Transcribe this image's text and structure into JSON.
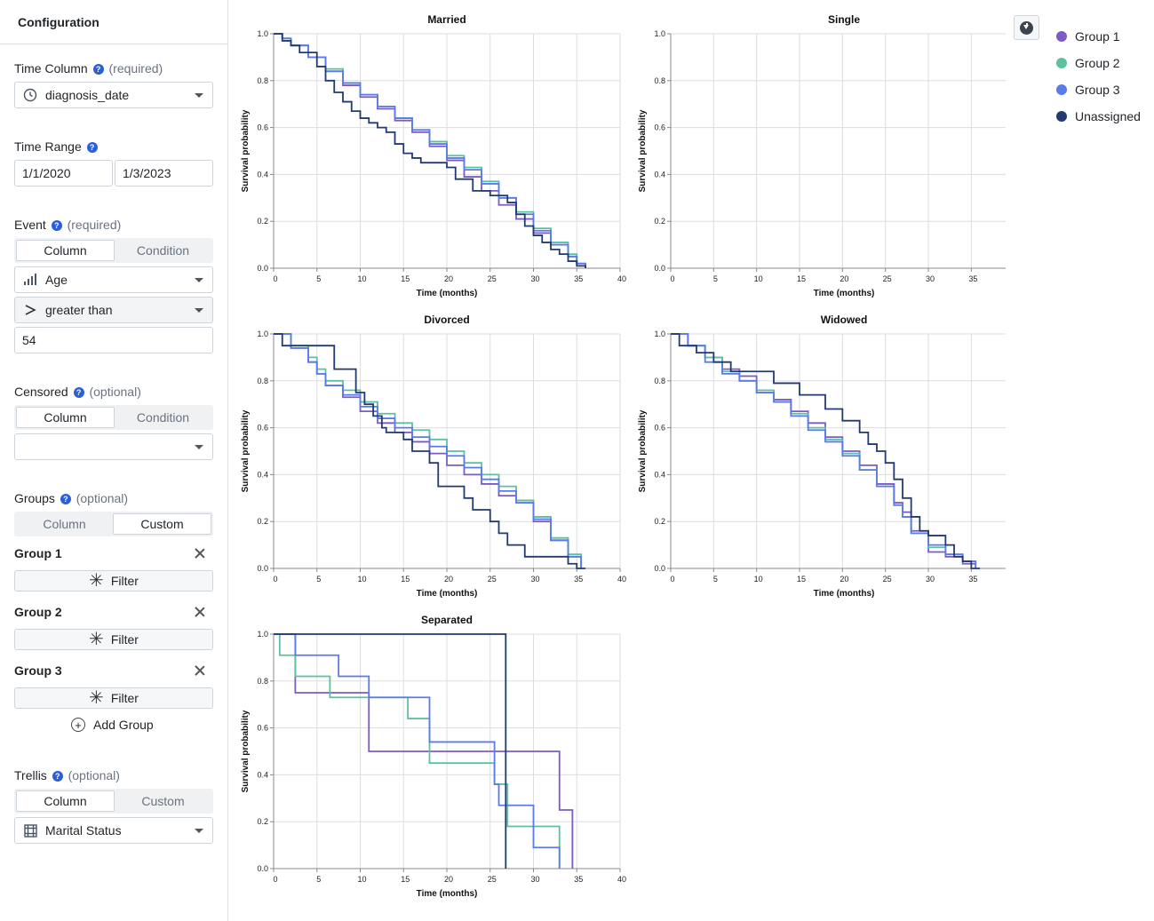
{
  "sidebar": {
    "title": "Configuration",
    "time_column": {
      "label": "Time Column",
      "note": "(required)",
      "value": "diagnosis_date"
    },
    "time_range": {
      "label": "Time Range",
      "start": "1/1/2020",
      "end": "1/3/2023"
    },
    "event": {
      "label": "Event",
      "note": "(required)",
      "mode_options": [
        "Column",
        "Condition"
      ],
      "mode_selected": "Column",
      "column": "Age",
      "operator": "greater than",
      "value": "54"
    },
    "censored": {
      "label": "Censored",
      "note": "(optional)",
      "mode_options": [
        "Column",
        "Condition"
      ],
      "mode_selected": "Column",
      "column": ""
    },
    "groups": {
      "label": "Groups",
      "note": "(optional)",
      "mode_options": [
        "Column",
        "Custom"
      ],
      "mode_selected": "Custom",
      "items": [
        {
          "name": "Group 1",
          "filter_label": "Filter"
        },
        {
          "name": "Group 2",
          "filter_label": "Filter"
        },
        {
          "name": "Group 3",
          "filter_label": "Filter"
        }
      ],
      "add_label": "Add Group"
    },
    "trellis": {
      "label": "Trellis",
      "note": "(optional)",
      "mode_options": [
        "Column",
        "Custom"
      ],
      "mode_selected": "Column",
      "column": "Marital Status"
    }
  },
  "legend": [
    {
      "name": "Group 1",
      "color": "#7c5bc4"
    },
    {
      "name": "Group 2",
      "color": "#5cc1a0"
    },
    {
      "name": "Group 3",
      "color": "#5b7bea"
    },
    {
      "name": "Unassigned",
      "color": "#223a6e"
    }
  ],
  "chart_data": [
    {
      "type": "line",
      "step": true,
      "title": "Married",
      "xlabel": "Time (months)",
      "ylabel": "Survival probability",
      "xlim": [
        0,
        40
      ],
      "ylim": [
        0,
        1
      ],
      "xticks": [
        0,
        5,
        10,
        15,
        20,
        25,
        30,
        35,
        40
      ],
      "yticks": [
        "0.0",
        "0.2",
        "0.4",
        "0.6",
        "0.8",
        "1.0"
      ],
      "series": [
        {
          "name": "Group 1",
          "x": [
            0,
            1,
            2,
            4,
            6,
            8,
            10,
            12,
            14,
            16,
            18,
            20,
            22,
            24,
            26,
            28,
            30,
            32,
            34,
            35,
            36
          ],
          "y": [
            1.0,
            0.98,
            0.95,
            0.9,
            0.84,
            0.78,
            0.73,
            0.68,
            0.63,
            0.58,
            0.52,
            0.46,
            0.39,
            0.33,
            0.27,
            0.21,
            0.15,
            0.1,
            0.05,
            0.02,
            0.0
          ]
        },
        {
          "name": "Group 2",
          "x": [
            0,
            1,
            2,
            4,
            6,
            8,
            10,
            12,
            14,
            16,
            18,
            20,
            22,
            24,
            26,
            28,
            30,
            32,
            34,
            35,
            36
          ],
          "y": [
            1.0,
            0.98,
            0.95,
            0.9,
            0.85,
            0.79,
            0.74,
            0.69,
            0.64,
            0.59,
            0.54,
            0.48,
            0.43,
            0.37,
            0.3,
            0.24,
            0.17,
            0.11,
            0.06,
            0.02,
            0.0
          ]
        },
        {
          "name": "Group 3",
          "x": [
            0,
            1,
            2,
            4,
            6,
            8,
            10,
            12,
            14,
            16,
            18,
            20,
            22,
            24,
            26,
            28,
            30,
            32,
            34,
            35,
            36
          ],
          "y": [
            1.0,
            0.98,
            0.95,
            0.9,
            0.84,
            0.79,
            0.74,
            0.69,
            0.64,
            0.59,
            0.53,
            0.47,
            0.42,
            0.36,
            0.3,
            0.23,
            0.16,
            0.1,
            0.05,
            0.02,
            0.0
          ]
        },
        {
          "name": "Unassigned",
          "x": [
            0,
            1,
            2,
            3,
            5,
            6,
            7,
            8,
            9,
            10,
            11,
            12,
            13,
            14,
            15,
            16,
            17,
            20,
            21,
            23,
            25,
            27,
            28,
            29,
            30,
            31,
            32,
            33,
            34,
            35,
            36
          ],
          "y": [
            1.0,
            0.97,
            0.95,
            0.92,
            0.86,
            0.8,
            0.75,
            0.71,
            0.67,
            0.64,
            0.62,
            0.6,
            0.58,
            0.53,
            0.49,
            0.47,
            0.45,
            0.43,
            0.38,
            0.33,
            0.31,
            0.28,
            0.23,
            0.18,
            0.14,
            0.11,
            0.08,
            0.06,
            0.03,
            0.01,
            0.0
          ]
        }
      ]
    },
    {
      "type": "line",
      "step": true,
      "title": "Single",
      "xlabel": "Time (months)",
      "ylabel": "Survival probability",
      "xlim": [
        0,
        39
      ],
      "ylim": [
        0,
        1
      ],
      "xticks": [
        0,
        5,
        10,
        15,
        20,
        25,
        30,
        35
      ],
      "yticks": [
        "0.0",
        "0.2",
        "0.4",
        "0.6",
        "0.8",
        "1.0"
      ],
      "series": []
    },
    {
      "type": "line",
      "step": true,
      "title": "Divorced",
      "xlabel": "Time (months)",
      "ylabel": "Survival probability",
      "xlim": [
        0,
        40
      ],
      "ylim": [
        0,
        1
      ],
      "xticks": [
        0,
        5,
        10,
        15,
        20,
        25,
        30,
        35,
        40
      ],
      "yticks": [
        "0.0",
        "0.2",
        "0.4",
        "0.6",
        "0.8",
        "1.0"
      ],
      "series": [
        {
          "name": "Group 1",
          "x": [
            0,
            2,
            4,
            5,
            6,
            8,
            10,
            12,
            14,
            16,
            18,
            20,
            22,
            24,
            26,
            28,
            30,
            32,
            34,
            35.5
          ],
          "y": [
            1.0,
            0.94,
            0.88,
            0.83,
            0.78,
            0.73,
            0.67,
            0.62,
            0.58,
            0.54,
            0.49,
            0.44,
            0.4,
            0.36,
            0.31,
            0.29,
            0.2,
            0.12,
            0.05,
            0.0
          ]
        },
        {
          "name": "Group 2",
          "x": [
            0,
            2,
            4,
            5,
            6,
            8,
            10,
            12,
            14,
            16,
            18,
            20,
            22,
            24,
            26,
            28,
            30,
            32,
            34,
            35.5
          ],
          "y": [
            1.0,
            0.95,
            0.9,
            0.85,
            0.8,
            0.76,
            0.71,
            0.66,
            0.62,
            0.59,
            0.55,
            0.5,
            0.45,
            0.4,
            0.35,
            0.29,
            0.22,
            0.13,
            0.06,
            0.0
          ]
        },
        {
          "name": "Group 3",
          "x": [
            0,
            2,
            4,
            5,
            6,
            8,
            10,
            12,
            14,
            16,
            18,
            20,
            22,
            24,
            26,
            28,
            30,
            32,
            34,
            35.5
          ],
          "y": [
            1.0,
            0.94,
            0.88,
            0.83,
            0.78,
            0.74,
            0.69,
            0.64,
            0.6,
            0.56,
            0.52,
            0.48,
            0.43,
            0.38,
            0.33,
            0.28,
            0.21,
            0.12,
            0.05,
            0.0
          ]
        },
        {
          "name": "Unassigned",
          "x": [
            0,
            1,
            6.5,
            7,
            9.5,
            10.5,
            11.5,
            12.5,
            13,
            15,
            16,
            18,
            19,
            22,
            23,
            25,
            26,
            27,
            29,
            30,
            34,
            35,
            36
          ],
          "y": [
            1.0,
            0.95,
            0.95,
            0.85,
            0.75,
            0.7,
            0.65,
            0.6,
            0.58,
            0.55,
            0.5,
            0.45,
            0.35,
            0.3,
            0.25,
            0.2,
            0.15,
            0.1,
            0.05,
            0.05,
            0.02,
            0.0,
            0.0
          ]
        }
      ]
    },
    {
      "type": "line",
      "step": true,
      "title": "Widowed",
      "xlabel": "Time (months)",
      "ylabel": "Survival probability",
      "xlim": [
        0,
        39
      ],
      "ylim": [
        0,
        1
      ],
      "xticks": [
        0,
        5,
        10,
        15,
        20,
        25,
        30,
        35
      ],
      "yticks": [
        "0.0",
        "0.2",
        "0.4",
        "0.6",
        "0.8",
        "1.0"
      ],
      "series": [
        {
          "name": "Group 1",
          "x": [
            0,
            2,
            4,
            6,
            8,
            10,
            12,
            14,
            16,
            18,
            20,
            22,
            24,
            26,
            27,
            28,
            30,
            32,
            34,
            35.5
          ],
          "y": [
            1.0,
            0.95,
            0.9,
            0.85,
            0.82,
            0.75,
            0.72,
            0.67,
            0.62,
            0.56,
            0.5,
            0.44,
            0.36,
            0.28,
            0.24,
            0.16,
            0.07,
            0.05,
            0.02,
            0.0
          ]
        },
        {
          "name": "Group 2",
          "x": [
            0,
            2,
            4,
            6,
            8,
            10,
            12,
            14,
            16,
            18,
            20,
            22,
            24,
            26,
            27,
            28,
            30,
            32,
            34,
            35.5
          ],
          "y": [
            1.0,
            0.95,
            0.9,
            0.84,
            0.8,
            0.76,
            0.71,
            0.66,
            0.6,
            0.55,
            0.49,
            0.42,
            0.35,
            0.27,
            0.22,
            0.15,
            0.09,
            0.06,
            0.03,
            0.0
          ]
        },
        {
          "name": "Group 3",
          "x": [
            0,
            2,
            4,
            6,
            8,
            10,
            12,
            14,
            16,
            18,
            20,
            22,
            24,
            26,
            27,
            28,
            30,
            32,
            34,
            35.5
          ],
          "y": [
            1.0,
            0.95,
            0.88,
            0.83,
            0.8,
            0.75,
            0.71,
            0.65,
            0.59,
            0.54,
            0.48,
            0.42,
            0.35,
            0.27,
            0.22,
            0.15,
            0.1,
            0.06,
            0.03,
            0.0
          ]
        },
        {
          "name": "Unassigned",
          "x": [
            0,
            1,
            3,
            5,
            7,
            12,
            15,
            18,
            20,
            22,
            23,
            24,
            25,
            26,
            27,
            28,
            29,
            30,
            32,
            33,
            34,
            35,
            36
          ],
          "y": [
            1.0,
            0.95,
            0.92,
            0.88,
            0.84,
            0.79,
            0.74,
            0.68,
            0.63,
            0.58,
            0.53,
            0.5,
            0.45,
            0.38,
            0.3,
            0.22,
            0.16,
            0.14,
            0.1,
            0.05,
            0.03,
            0.0,
            0.0
          ]
        }
      ]
    },
    {
      "type": "line",
      "step": true,
      "title": "Separated",
      "xlabel": "Time (months)",
      "ylabel": "Survival probability",
      "xlim": [
        0,
        40
      ],
      "ylim": [
        0,
        1
      ],
      "xticks": [
        0,
        5,
        10,
        15,
        20,
        25,
        30,
        35,
        40
      ],
      "yticks": [
        "0.0",
        "0.2",
        "0.4",
        "0.6",
        "0.8",
        "1.0"
      ],
      "series": [
        {
          "name": "Group 1",
          "x": [
            0,
            2.5,
            11,
            33,
            34.5
          ],
          "y": [
            1.0,
            0.75,
            0.5,
            0.25,
            0.0
          ]
        },
        {
          "name": "Group 2",
          "x": [
            0,
            0.7,
            2.5,
            6.5,
            15.5,
            18,
            25.5,
            27,
            33
          ],
          "y": [
            1.0,
            0.91,
            0.82,
            0.73,
            0.64,
            0.45,
            0.36,
            0.18,
            0.0
          ]
        },
        {
          "name": "Group 3",
          "x": [
            0,
            2.5,
            7.5,
            11,
            18,
            25.5,
            26,
            30,
            33
          ],
          "y": [
            1.0,
            0.91,
            0.82,
            0.73,
            0.54,
            0.36,
            0.27,
            0.09,
            0.0
          ]
        },
        {
          "name": "Unassigned",
          "x": [
            0,
            26.8
          ],
          "y": [
            1.0,
            0.0
          ]
        }
      ]
    }
  ]
}
